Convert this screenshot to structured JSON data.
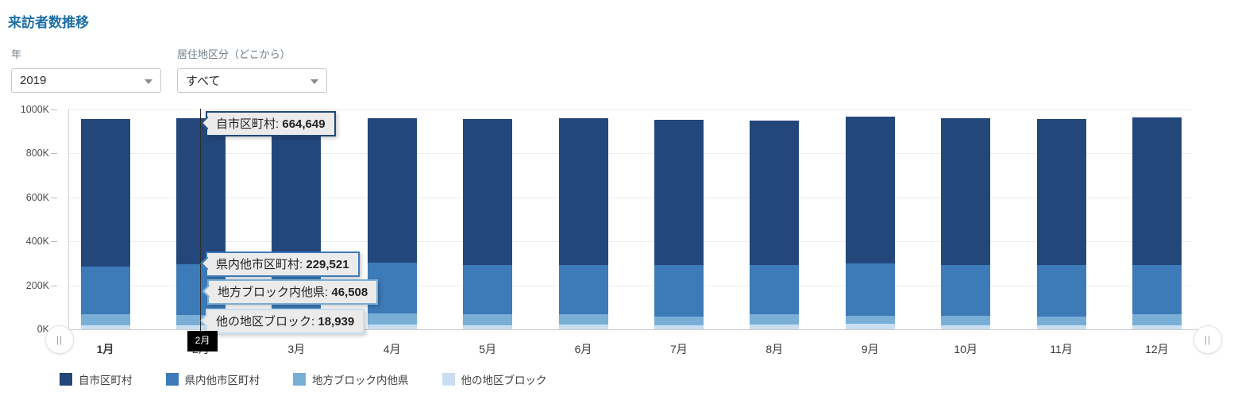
{
  "page": {
    "title": "来訪者数推移"
  },
  "filters": {
    "year": {
      "label": "年",
      "value": "2019"
    },
    "residence": {
      "label": "居住地区分（どこから）",
      "value": "すべて"
    }
  },
  "chart_data": {
    "type": "bar",
    "stacked": true,
    "title": "来訪者数推移",
    "categories": [
      "1月",
      "2月",
      "3月",
      "4月",
      "5月",
      "6月",
      "7月",
      "8月",
      "9月",
      "10月",
      "11月",
      "12月"
    ],
    "series": [
      {
        "name": "自市区町村",
        "color": "#23477b",
        "values": [
          669000,
          664649,
          662000,
          654000,
          662000,
          665000,
          658000,
          655000,
          667000,
          666000,
          662000,
          668000
        ]
      },
      {
        "name": "県内他市区町村",
        "color": "#3d7ab8",
        "values": [
          219000,
          229521,
          226000,
          233000,
          225000,
          224000,
          233000,
          225000,
          236000,
          231000,
          233000,
          226000
        ]
      },
      {
        "name": "地方ブロック内他県",
        "color": "#79aed6",
        "values": [
          50000,
          46508,
          48000,
          48000,
          48000,
          47000,
          42000,
          44000,
          37000,
          43000,
          40000,
          49000
        ]
      },
      {
        "name": "他の地区ブロック",
        "color": "#c9def0",
        "values": [
          17000,
          18939,
          18000,
          23000,
          19000,
          22000,
          17000,
          23000,
          25000,
          18000,
          19000,
          18000
        ]
      }
    ],
    "ylim": [
      0,
      1000000
    ],
    "y_ticks": [
      {
        "label": "1000K",
        "value": 1000000
      },
      {
        "label": "800K",
        "value": 800000
      },
      {
        "label": "600K",
        "value": 600000
      },
      {
        "label": "400K",
        "value": 400000
      },
      {
        "label": "200K",
        "value": 200000
      },
      {
        "label": "0K",
        "value": 0
      }
    ],
    "grid": true,
    "legend_position": "bottom",
    "highlighted_category": "2月",
    "tooltips": [
      {
        "label": "自市区町村",
        "value": "664,649"
      },
      {
        "label": "県内他市区町村",
        "value": "229,521"
      },
      {
        "label": "地方ブロック内他県",
        "value": "46,508"
      },
      {
        "label": "他の地区ブロック",
        "value": "18,939"
      }
    ]
  },
  "pan": {
    "handle_glyph": "||"
  }
}
